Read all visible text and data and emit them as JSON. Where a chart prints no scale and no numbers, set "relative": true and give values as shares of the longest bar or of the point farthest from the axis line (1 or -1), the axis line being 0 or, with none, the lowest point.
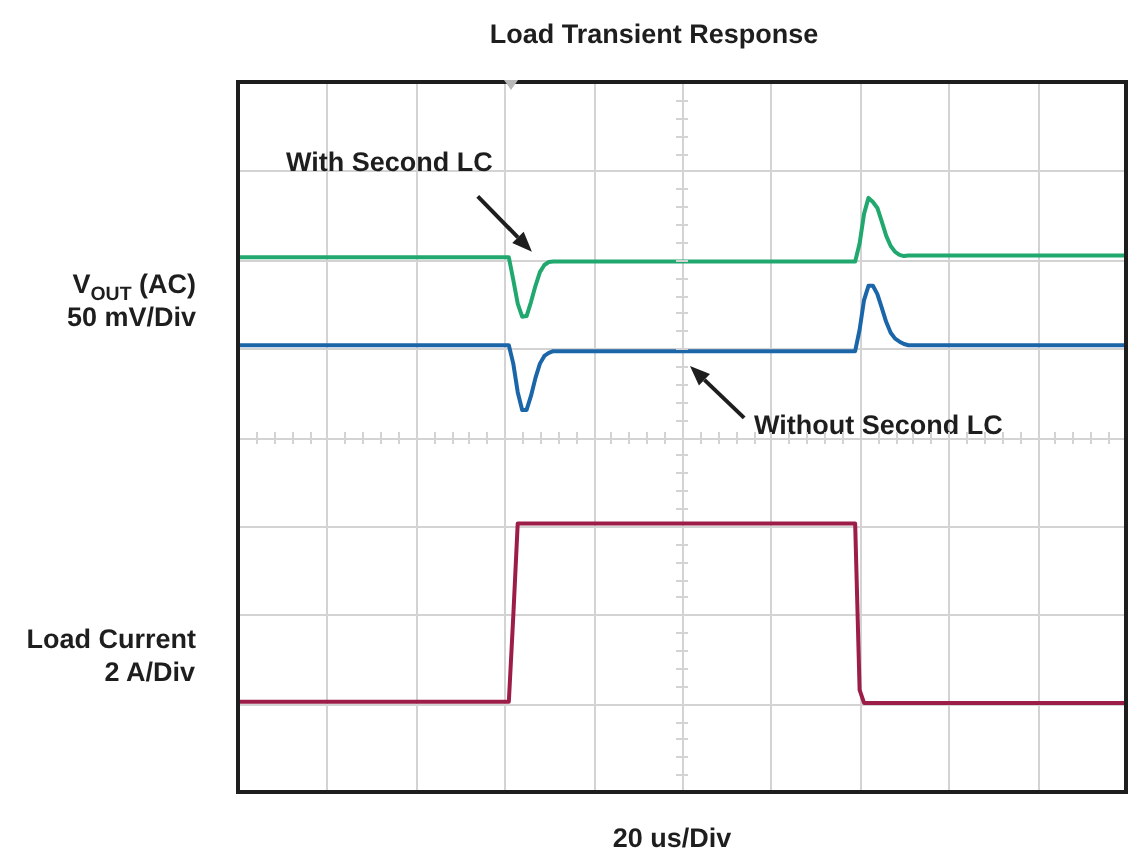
{
  "chart_data": {
    "type": "line",
    "title": "Load Transient Response",
    "xlabel": "20 us/Div",
    "annotations": [
      "V$_{OUT}$ (AC)\n50 mV/Div",
      "Load Current\n2 A/Div"
    ],
    "relative": true,
    "grid": true,
    "categories": [
      null,
      null,
      null,
      null,
      null,
      null,
      null,
      null,
      null,
      null,
      null,
      null,
      null,
      null,
      null,
      null,
      null,
      null,
      null,
      null,
      null,
      null,
      null,
      null,
      null,
      null,
      null,
      null,
      null,
      null,
      null,
      null,
      null,
      null,
      null,
      null,
      null,
      null,
      null,
      null,
      null,
      null,
      null,
      null,
      null,
      null,
      null,
      null,
      null,
      null,
      null,
      null,
      null,
      null,
      null,
      null,
      null,
      null,
      null,
      null,
      null,
      null,
      null,
      null,
      null,
      null,
      null,
      null,
      null,
      null,
      null,
      null,
      null,
      null,
      null,
      null,
      null,
      null,
      null,
      null,
      null,
      null,
      null,
      null,
      null,
      null,
      null,
      null,
      null,
      null,
      null,
      null,
      null,
      null,
      null,
      null,
      null,
      null,
      null,
      null,
      null,
      null,
      null,
      null,
      null,
      null,
      null,
      null,
      null,
      null,
      null,
      null,
      null,
      null,
      null,
      null,
      null,
      null,
      null,
      null,
      null,
      null,
      null,
      null,
      null,
      null,
      null,
      null,
      null,
      null,
      null,
      null,
      null,
      null,
      null,
      null,
      null,
      null,
      null,
      null,
      null,
      null,
      null,
      null,
      null,
      null,
      null,
      null,
      null,
      null,
      null,
      null,
      null,
      null,
      null,
      null,
      null,
      null,
      null,
      null,
      null,
      null,
      null,
      null,
      null,
      null,
      null,
      null,
      null,
      null,
      null,
      null,
      null,
      null,
      null,
      null,
      null,
      null,
      null,
      null,
      null,
      null,
      null,
      null,
      null,
      null,
      null,
      null,
      null,
      null,
      null,
      null,
      null,
      null,
      null,
      null,
      null,
      null,
      null,
      null,
      null
    ],
    "series": [
      {
        "name": "With Second LC",
        "color": "#21a86f",
        "values": [
          0.9,
          0.9,
          0.9,
          0.9,
          0.9,
          0.9,
          0.9,
          0.9,
          0.9,
          0.9,
          0.9,
          0.9,
          0.9,
          0.9,
          0.9,
          0.9,
          0.9,
          0.9,
          0.9,
          0.9,
          0.9,
          0.9,
          0.9,
          0.9,
          0.9,
          0.9,
          0.9,
          0.9,
          0.9,
          0.9,
          0.9,
          0.9,
          0.9,
          0.9,
          0.9,
          0.9,
          0.9,
          0.9,
          0.9,
          0.9,
          0.9,
          0.9,
          0.9,
          0.9,
          0.9,
          0.9,
          0.9,
          0.9,
          0.9,
          0.9,
          0.9,
          0.9,
          0.9,
          0.9,
          0.9,
          0.9,
          0.9,
          0.9,
          0.9,
          0.9,
          0.9,
          0.9,
          0.862,
          0.822,
          0.8,
          0.801,
          0.825,
          0.852,
          0.875,
          0.887,
          0.892,
          0.893,
          0.893,
          0.893,
          0.893,
          0.893,
          0.893,
          0.893,
          0.893,
          0.893,
          0.893,
          0.893,
          0.893,
          0.893,
          0.893,
          0.893,
          0.893,
          0.893,
          0.893,
          0.893,
          0.893,
          0.893,
          0.893,
          0.893,
          0.893,
          0.893,
          0.893,
          0.893,
          0.893,
          0.893,
          0.893,
          0.893,
          0.893,
          0.893,
          0.893,
          0.893,
          0.893,
          0.893,
          0.893,
          0.893,
          0.893,
          0.893,
          0.893,
          0.893,
          0.893,
          0.893,
          0.893,
          0.893,
          0.893,
          0.893,
          0.893,
          0.893,
          0.893,
          0.893,
          0.893,
          0.893,
          0.893,
          0.893,
          0.893,
          0.893,
          0.893,
          0.893,
          0.893,
          0.893,
          0.893,
          0.893,
          0.893,
          0.893,
          0.893,
          0.893,
          0.923,
          0.973,
          1,
          0.993,
          0.983,
          0.96,
          0.936,
          0.919,
          0.909,
          0.904,
          0.902,
          0.903,
          0.903,
          0.903,
          0.903,
          0.903,
          0.903,
          0.903,
          0.903,
          0.903,
          0.903,
          0.903,
          0.903,
          0.903,
          0.903,
          0.903,
          0.903,
          0.903,
          0.903,
          0.903,
          0.903,
          0.903,
          0.903,
          0.903,
          0.903,
          0.903,
          0.903,
          0.903,
          0.903,
          0.903,
          0.903,
          0.903,
          0.903,
          0.903,
          0.903,
          0.903,
          0.903,
          0.903,
          0.903,
          0.903,
          0.903,
          0.903,
          0.903,
          0.903,
          0.903,
          0.903,
          0.903,
          0.903,
          0.903,
          0.903,
          0.903
        ]
      },
      {
        "name": "Without Second LC",
        "color": "#1b66a9",
        "values": [
          0.752,
          0.752,
          0.752,
          0.752,
          0.752,
          0.752,
          0.752,
          0.752,
          0.752,
          0.752,
          0.752,
          0.752,
          0.752,
          0.752,
          0.752,
          0.752,
          0.752,
          0.752,
          0.752,
          0.752,
          0.752,
          0.752,
          0.752,
          0.752,
          0.752,
          0.752,
          0.752,
          0.752,
          0.752,
          0.752,
          0.752,
          0.752,
          0.752,
          0.752,
          0.752,
          0.752,
          0.752,
          0.752,
          0.752,
          0.752,
          0.752,
          0.752,
          0.752,
          0.752,
          0.752,
          0.752,
          0.752,
          0.752,
          0.752,
          0.752,
          0.752,
          0.752,
          0.752,
          0.752,
          0.752,
          0.752,
          0.752,
          0.752,
          0.752,
          0.752,
          0.752,
          0.752,
          0.721,
          0.673,
          0.643,
          0.643,
          0.667,
          0.697,
          0.721,
          0.734,
          0.739,
          0.742,
          0.742,
          0.742,
          0.742,
          0.742,
          0.742,
          0.742,
          0.742,
          0.742,
          0.742,
          0.742,
          0.742,
          0.742,
          0.742,
          0.742,
          0.742,
          0.742,
          0.742,
          0.742,
          0.742,
          0.742,
          0.742,
          0.742,
          0.742,
          0.742,
          0.742,
          0.742,
          0.742,
          0.742,
          0.742,
          0.742,
          0.742,
          0.742,
          0.742,
          0.742,
          0.742,
          0.742,
          0.742,
          0.742,
          0.742,
          0.742,
          0.742,
          0.742,
          0.742,
          0.742,
          0.742,
          0.742,
          0.742,
          0.742,
          0.742,
          0.742,
          0.742,
          0.742,
          0.742,
          0.742,
          0.742,
          0.742,
          0.742,
          0.742,
          0.742,
          0.742,
          0.742,
          0.742,
          0.742,
          0.742,
          0.742,
          0.742,
          0.742,
          0.742,
          0.778,
          0.828,
          0.852,
          0.852,
          0.838,
          0.815,
          0.791,
          0.773,
          0.763,
          0.758,
          0.754,
          0.752,
          0.752,
          0.752,
          0.752,
          0.752,
          0.752,
          0.752,
          0.752,
          0.752,
          0.752,
          0.752,
          0.752,
          0.752,
          0.752,
          0.752,
          0.752,
          0.752,
          0.752,
          0.752,
          0.752,
          0.752,
          0.752,
          0.752,
          0.752,
          0.752,
          0.752,
          0.752,
          0.752,
          0.752,
          0.752,
          0.752,
          0.752,
          0.752,
          0.752,
          0.752,
          0.752,
          0.752,
          0.752,
          0.752,
          0.752,
          0.752,
          0.752,
          0.752,
          0.752,
          0.752,
          0.752,
          0.752,
          0.752,
          0.752,
          0.752
        ]
      },
      {
        "color": "#9c1d48",
        "values": [
          0.152,
          0.152,
          0.152,
          0.152,
          0.152,
          0.152,
          0.152,
          0.152,
          0.152,
          0.152,
          0.152,
          0.152,
          0.152,
          0.152,
          0.152,
          0.152,
          0.152,
          0.152,
          0.152,
          0.152,
          0.152,
          0.152,
          0.152,
          0.152,
          0.152,
          0.152,
          0.152,
          0.152,
          0.152,
          0.152,
          0.152,
          0.152,
          0.152,
          0.152,
          0.152,
          0.152,
          0.152,
          0.152,
          0.152,
          0.152,
          0.152,
          0.152,
          0.152,
          0.152,
          0.152,
          0.152,
          0.152,
          0.152,
          0.152,
          0.152,
          0.152,
          0.152,
          0.152,
          0.152,
          0.152,
          0.152,
          0.152,
          0.152,
          0.152,
          0.152,
          0.152,
          0.152,
          0.296,
          0.452,
          0.452,
          0.452,
          0.452,
          0.452,
          0.452,
          0.452,
          0.452,
          0.452,
          0.452,
          0.452,
          0.452,
          0.452,
          0.452,
          0.452,
          0.452,
          0.452,
          0.452,
          0.452,
          0.452,
          0.452,
          0.452,
          0.452,
          0.452,
          0.452,
          0.452,
          0.452,
          0.452,
          0.452,
          0.452,
          0.452,
          0.452,
          0.452,
          0.452,
          0.452,
          0.452,
          0.452,
          0.452,
          0.452,
          0.452,
          0.452,
          0.452,
          0.452,
          0.452,
          0.452,
          0.452,
          0.452,
          0.452,
          0.452,
          0.452,
          0.452,
          0.452,
          0.452,
          0.452,
          0.452,
          0.452,
          0.452,
          0.452,
          0.452,
          0.452,
          0.452,
          0.452,
          0.452,
          0.452,
          0.452,
          0.452,
          0.452,
          0.452,
          0.452,
          0.452,
          0.452,
          0.452,
          0.452,
          0.452,
          0.452,
          0.452,
          0.452,
          0.172,
          0.15,
          0.15,
          0.15,
          0.15,
          0.15,
          0.15,
          0.15,
          0.15,
          0.15,
          0.15,
          0.15,
          0.15,
          0.15,
          0.15,
          0.15,
          0.15,
          0.15,
          0.15,
          0.15,
          0.15,
          0.15,
          0.15,
          0.15,
          0.15,
          0.15,
          0.15,
          0.15,
          0.15,
          0.15,
          0.15,
          0.15,
          0.15,
          0.15,
          0.15,
          0.15,
          0.15,
          0.15,
          0.15,
          0.15,
          0.15,
          0.15,
          0.15,
          0.15,
          0.15,
          0.15,
          0.15,
          0.15,
          0.15,
          0.15,
          0.15,
          0.15,
          0.15,
          0.15,
          0.15,
          0.15,
          0.15,
          0.15,
          0.15,
          0.15,
          0.15
        ]
      }
    ]
  }
}
